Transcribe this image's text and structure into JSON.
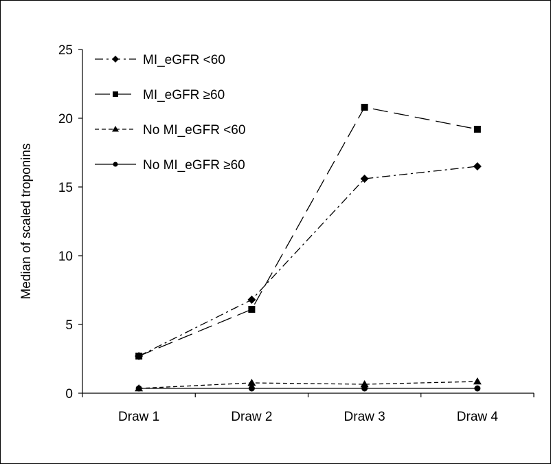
{
  "chart_data": {
    "type": "line",
    "title": "",
    "xlabel": "",
    "ylabel": "Median of scaled troponins",
    "categories": [
      "Draw 1",
      "Draw 2",
      "Draw 3",
      "Draw 4"
    ],
    "ylim": [
      0,
      25
    ],
    "yticks": [
      "0",
      "5",
      "10",
      "15",
      "20",
      "25"
    ],
    "grid": false,
    "legend_position": "top-left",
    "series": [
      {
        "name": "MI_eGFR <60",
        "values": [
          2.7,
          6.8,
          15.6,
          16.5
        ],
        "marker": "diamond",
        "dash": "dashdot",
        "color": "#000000"
      },
      {
        "name": "MI_eGFR ≥60",
        "values": [
          2.7,
          6.1,
          20.8,
          19.2
        ],
        "marker": "square",
        "dash": "longdash",
        "color": "#000000"
      },
      {
        "name": "No MI_eGFR <60",
        "values": [
          0.35,
          0.75,
          0.65,
          0.85
        ],
        "marker": "triangle",
        "dash": "shortdash",
        "color": "#000000"
      },
      {
        "name": "No MI_eGFR ≥60",
        "values": [
          0.35,
          0.35,
          0.35,
          0.35
        ],
        "marker": "circle",
        "dash": "solid",
        "color": "#000000"
      }
    ]
  }
}
